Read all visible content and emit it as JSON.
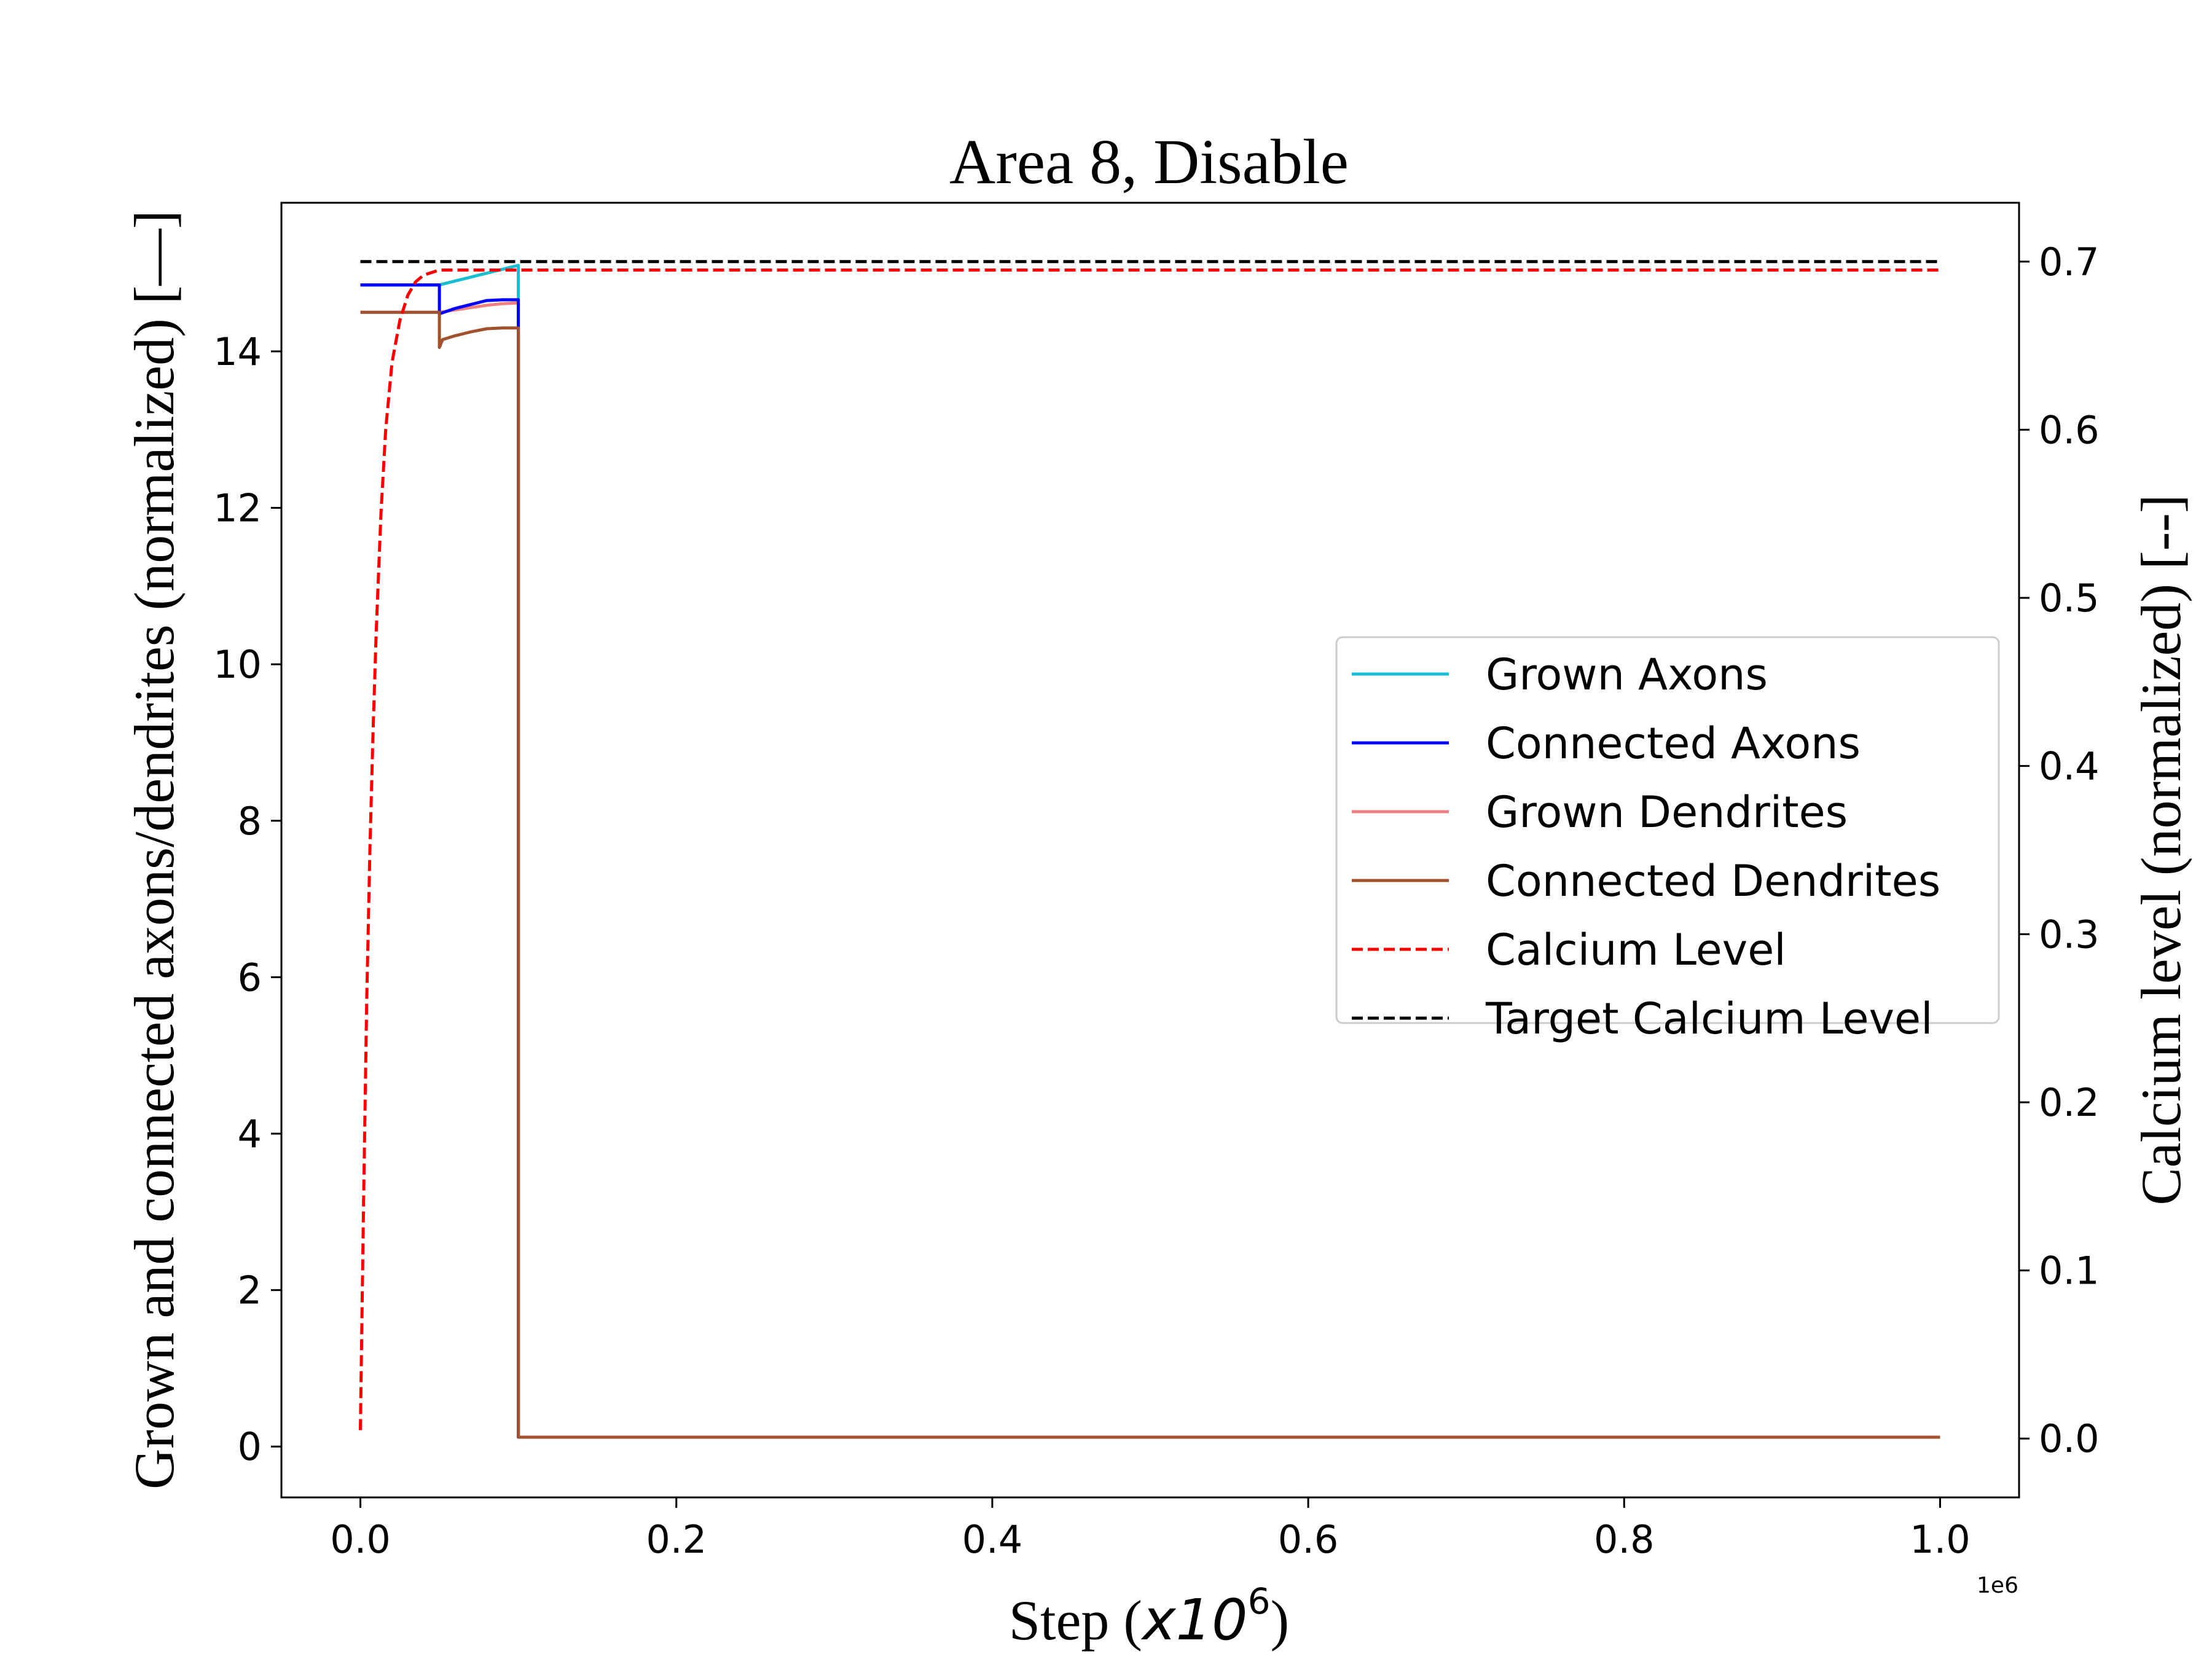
{
  "chart_data": {
    "type": "line",
    "title": "Area 8, Disable",
    "xlabel": "Step (",
    "xlabel_math": "x10",
    "xlabel_exp": "6",
    "xlabel_close": ")",
    "x_offset_label": "1e6",
    "ylabel_left": "Grown and connected axons/dendrites (normalized) [—]",
    "ylabel_right": "Calcium level (normalized) [--]",
    "xlim": [
      -0.05,
      1.05
    ],
    "ylim_left": [
      -0.65,
      15.9
    ],
    "ylim_right": [
      -0.035,
      0.735
    ],
    "x_ticks": [
      0.0,
      0.2,
      0.4,
      0.6,
      0.8,
      1.0
    ],
    "x_tick_labels": [
      "0.0",
      "0.2",
      "0.4",
      "0.6",
      "0.8",
      "1.0"
    ],
    "y_left_ticks": [
      0,
      2,
      4,
      6,
      8,
      10,
      12,
      14
    ],
    "y_left_tick_labels": [
      "0",
      "2",
      "4",
      "6",
      "8",
      "10",
      "12",
      "14"
    ],
    "y_right_ticks": [
      0.0,
      0.1,
      0.2,
      0.3,
      0.4,
      0.5,
      0.6,
      0.7
    ],
    "y_right_tick_labels": [
      "0.0",
      "0.1",
      "0.2",
      "0.3",
      "0.4",
      "0.5",
      "0.6",
      "0.7"
    ],
    "grid": false,
    "legend_position": "center-right",
    "series": [
      {
        "name": "Grown Axons",
        "axis": "left",
        "style": "solid",
        "color": "#17becf",
        "points": [
          [
            0.0,
            14.85
          ],
          [
            0.05,
            14.85
          ],
          [
            0.05,
            14.85
          ],
          [
            0.06,
            14.9
          ],
          [
            0.07,
            14.95
          ],
          [
            0.08,
            15.0
          ],
          [
            0.09,
            15.05
          ],
          [
            0.1,
            15.1
          ],
          [
            0.1,
            0.12
          ],
          [
            0.3,
            0.12
          ],
          [
            0.5,
            0.12
          ],
          [
            0.7,
            0.12
          ],
          [
            1.0,
            0.12
          ]
        ]
      },
      {
        "name": "Connected Axons",
        "axis": "left",
        "style": "solid",
        "color": "#0000ff",
        "points": [
          [
            0.0,
            14.85
          ],
          [
            0.05,
            14.85
          ],
          [
            0.05,
            14.48
          ],
          [
            0.06,
            14.55
          ],
          [
            0.07,
            14.6
          ],
          [
            0.08,
            14.65
          ],
          [
            0.09,
            14.66
          ],
          [
            0.1,
            14.66
          ],
          [
            0.1,
            0.12
          ],
          [
            0.3,
            0.12
          ],
          [
            0.5,
            0.12
          ],
          [
            0.7,
            0.12
          ],
          [
            1.0,
            0.12
          ]
        ]
      },
      {
        "name": "Grown Dendrites",
        "axis": "left",
        "style": "solid",
        "color": "#f08080",
        "points": [
          [
            0.0,
            14.5
          ],
          [
            0.05,
            14.5
          ],
          [
            0.05,
            14.5
          ],
          [
            0.06,
            14.53
          ],
          [
            0.07,
            14.56
          ],
          [
            0.08,
            14.59
          ],
          [
            0.09,
            14.61
          ],
          [
            0.1,
            14.62
          ],
          [
            0.1,
            0.12
          ],
          [
            0.3,
            0.12
          ],
          [
            0.5,
            0.12
          ],
          [
            0.7,
            0.12
          ],
          [
            1.0,
            0.12
          ]
        ]
      },
      {
        "name": "Connected Dendrites",
        "axis": "left",
        "style": "solid",
        "color": "#a0522d",
        "points": [
          [
            0.0,
            14.5
          ],
          [
            0.05,
            14.5
          ],
          [
            0.05,
            14.05
          ],
          [
            0.052,
            14.15
          ],
          [
            0.06,
            14.2
          ],
          [
            0.07,
            14.25
          ],
          [
            0.08,
            14.29
          ],
          [
            0.09,
            14.3
          ],
          [
            0.1,
            14.3
          ],
          [
            0.1,
            0.12
          ],
          [
            0.3,
            0.12
          ],
          [
            0.5,
            0.12
          ],
          [
            0.7,
            0.12
          ],
          [
            1.0,
            0.12
          ]
        ]
      },
      {
        "name": "Calcium Level",
        "axis": "right",
        "style": "dashed",
        "color": "#ff0000",
        "points": [
          [
            0.0,
            0.005
          ],
          [
            0.002,
            0.14
          ],
          [
            0.004,
            0.26
          ],
          [
            0.006,
            0.35
          ],
          [
            0.008,
            0.42
          ],
          [
            0.01,
            0.48
          ],
          [
            0.013,
            0.55
          ],
          [
            0.016,
            0.6
          ],
          [
            0.02,
            0.64
          ],
          [
            0.025,
            0.665
          ],
          [
            0.03,
            0.68
          ],
          [
            0.035,
            0.688
          ],
          [
            0.04,
            0.692
          ],
          [
            0.05,
            0.695
          ],
          [
            0.1,
            0.695
          ],
          [
            0.3,
            0.695
          ],
          [
            0.6,
            0.695
          ],
          [
            1.0,
            0.695
          ]
        ]
      },
      {
        "name": "Target Calcium Level",
        "axis": "right",
        "style": "dashed",
        "color": "#000000",
        "points": [
          [
            0.0,
            0.7
          ],
          [
            1.0,
            0.7
          ]
        ]
      }
    ]
  }
}
